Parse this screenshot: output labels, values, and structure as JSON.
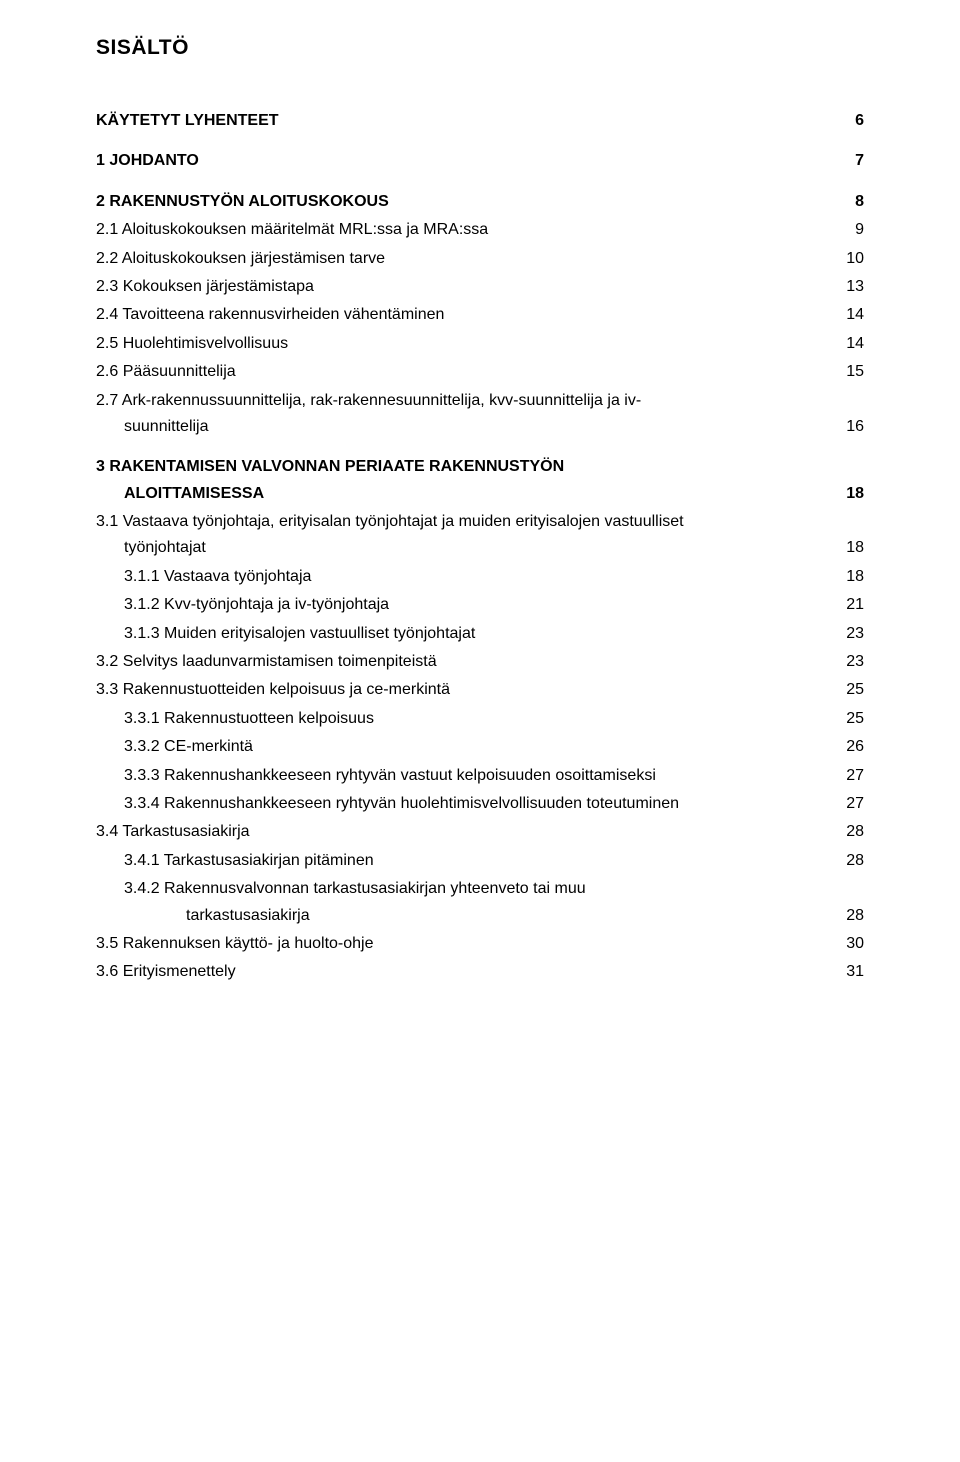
{
  "document": {
    "title": "SISÄLTÖ",
    "font_family": "Arial",
    "title_fontsize_pt": 16,
    "body_fontsize_pt": 12,
    "text_color": "#000000",
    "background_color": "#ffffff",
    "entries": [
      {
        "level": 1,
        "label": "KÄYTETYT LYHENTEET",
        "page": "6"
      },
      {
        "level": 1,
        "label": "1 JOHDANTO",
        "page": "7"
      },
      {
        "level": 1,
        "label": "2 RAKENNUSTYÖN ALOITUSKOKOUS",
        "page": "8"
      },
      {
        "level": 2,
        "label": "2.1 Aloituskokouksen määritelmät MRL:ssa ja MRA:ssa",
        "page": "9"
      },
      {
        "level": 2,
        "label": "2.2 Aloituskokouksen järjestämisen tarve",
        "page": "10"
      },
      {
        "level": 2,
        "label": "2.3 Kokouksen järjestämistapa",
        "page": "13"
      },
      {
        "level": 2,
        "label": "2.4 Tavoitteena rakennusvirheiden vähentäminen",
        "page": "14"
      },
      {
        "level": 2,
        "label": "2.5 Huolehtimisvelvollisuus",
        "page": "14"
      },
      {
        "level": 2,
        "label": "2.6 Pääsuunnittelija",
        "page": "15"
      },
      {
        "level": 2,
        "label_lines": [
          "2.7 Ark-rakennussuunnittelija, rak-rakennesuunnittelija, kvv-suunnittelija ja iv-",
          "suunnittelija"
        ],
        "page": "16"
      },
      {
        "level": 1,
        "label_lines": [
          "3 RAKENTAMISEN VALVONNAN PERIAATE RAKENNUSTYÖN",
          "ALOITTAMISESSA"
        ],
        "page": "18"
      },
      {
        "level": 2,
        "label_lines": [
          "3.1 Vastaava työnjohtaja, erityisalan työnjohtajat ja muiden erityisalojen vastuulliset",
          "työnjohtajat"
        ],
        "page": "18"
      },
      {
        "level": 3,
        "label": "3.1.1 Vastaava työnjohtaja",
        "page": "18"
      },
      {
        "level": 3,
        "label": "3.1.2 Kvv-työnjohtaja ja iv-työnjohtaja",
        "page": "21"
      },
      {
        "level": 3,
        "label": "3.1.3 Muiden erityisalojen vastuulliset työnjohtajat",
        "page": "23"
      },
      {
        "level": 2,
        "label": "3.2 Selvitys laadunvarmistamisen toimenpiteistä",
        "page": "23"
      },
      {
        "level": 2,
        "label": "3.3 Rakennustuotteiden kelpoisuus ja ce-merkintä",
        "page": "25"
      },
      {
        "level": 3,
        "label": "3.3.1 Rakennustuotteen kelpoisuus",
        "page": "25"
      },
      {
        "level": 3,
        "label": "3.3.2 CE-merkintä",
        "page": "26"
      },
      {
        "level": 3,
        "label": "3.3.3 Rakennushankkeeseen ryhtyvän vastuut kelpoisuuden osoittamiseksi",
        "page": "27"
      },
      {
        "level": 3,
        "label": "3.3.4 Rakennushankkeeseen ryhtyvän huolehtimisvelvollisuuden toteutuminen",
        "page": "27"
      },
      {
        "level": 2,
        "label": "3.4 Tarkastusasiakirja",
        "page": "28"
      },
      {
        "level": 3,
        "label": "3.4.1 Tarkastusasiakirjan pitäminen",
        "page": "28"
      },
      {
        "level": 3,
        "label_lines": [
          "3.4.2 Rakennusvalvonnan tarkastusasiakirjan yhteenveto tai muu",
          "tarkastusasiakirja"
        ],
        "page": "28"
      },
      {
        "level": 2,
        "label": "3.5 Rakennuksen käyttö- ja huolto-ohje",
        "page": "30"
      },
      {
        "level": 2,
        "label": "3.6 Erityismenettely",
        "page": "31"
      }
    ]
  }
}
